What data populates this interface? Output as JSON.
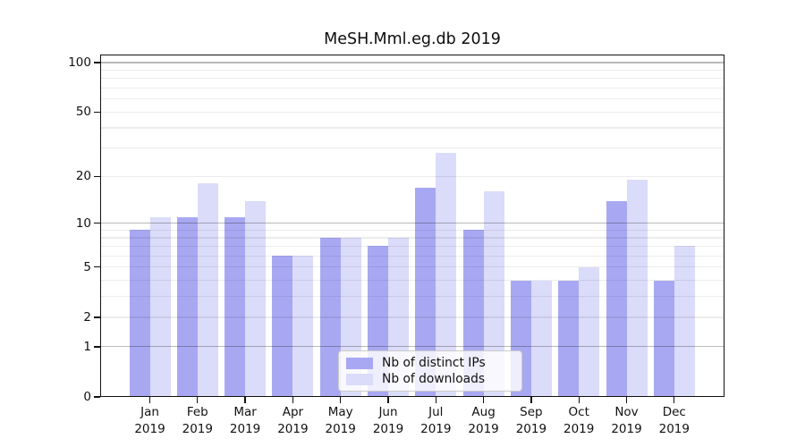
{
  "title": "MeSH.Mml.eg.db 2019",
  "chart_data": {
    "type": "bar",
    "title": "MeSH.Mml.eg.db 2019",
    "categories": [
      "Jan 2019",
      "Feb 2019",
      "Mar 2019",
      "Apr 2019",
      "May 2019",
      "Jun 2019",
      "Jul 2019",
      "Aug 2019",
      "Sep 2019",
      "Oct 2019",
      "Nov 2019",
      "Dec 2019"
    ],
    "month_labels": [
      "Jan",
      "Feb",
      "Mar",
      "Apr",
      "May",
      "Jun",
      "Jul",
      "Aug",
      "Sep",
      "Oct",
      "Nov",
      "Dec"
    ],
    "year_label": "2019",
    "series": [
      {
        "name": "Nb of distinct IPs",
        "color": "#a8a8f2",
        "values": [
          9,
          11,
          11,
          6,
          8,
          7,
          17,
          9,
          4,
          4,
          14,
          4
        ]
      },
      {
        "name": "Nb of downloads",
        "color": "#dbdbfa",
        "values": [
          11,
          18,
          14,
          6,
          8,
          8,
          28,
          16,
          4,
          5,
          19,
          7
        ]
      }
    ],
    "xlabel": "",
    "ylabel": "",
    "yscale": "log1p",
    "ylim": [
      0,
      113
    ],
    "ytick_values": [
      0,
      1,
      2,
      5,
      10,
      20,
      50,
      100
    ],
    "grid_major_values": [
      1,
      10,
      100
    ],
    "grid_minor_values": [
      2,
      3,
      4,
      5,
      6,
      7,
      8,
      9,
      20,
      30,
      40,
      50,
      60,
      70,
      80,
      90
    ],
    "grid_major_color": "#b9b9b9",
    "grid_minor_color": "#ececec",
    "legend_position": "lower center"
  }
}
